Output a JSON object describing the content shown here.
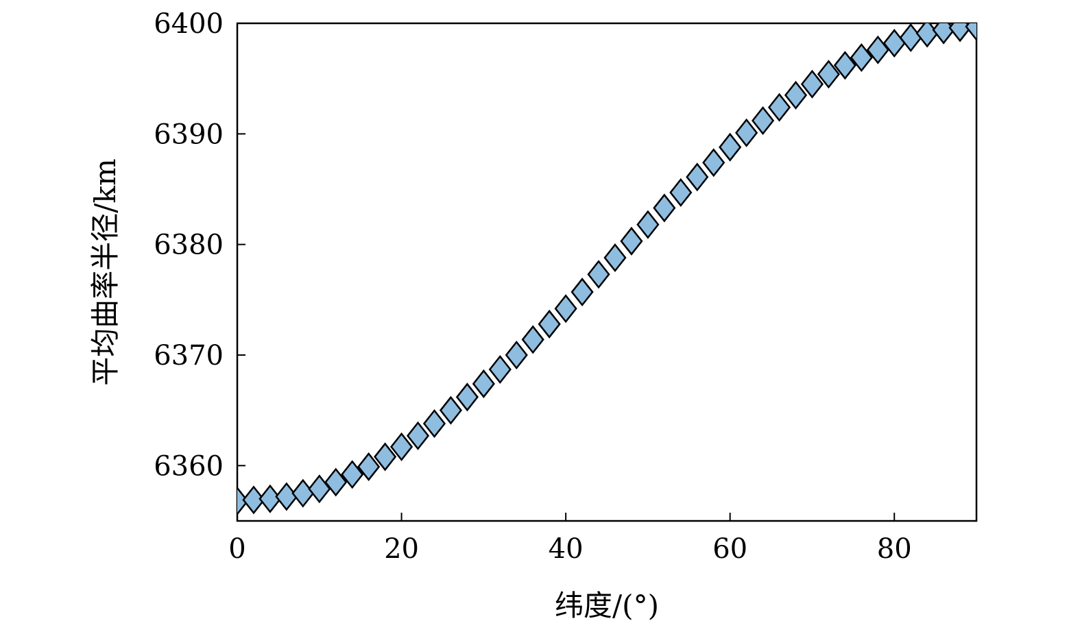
{
  "chart_data": {
    "type": "scatter",
    "title": "",
    "xlabel": "纬度/(°)",
    "ylabel": "平均曲率半径/km",
    "xlim": [
      0,
      90
    ],
    "ylim": [
      6355,
      6400
    ],
    "xticks": [
      0,
      20,
      40,
      60,
      80
    ],
    "yticks": [
      6360,
      6370,
      6380,
      6390,
      6400
    ],
    "grid": false,
    "legend": "none",
    "marker": "diamond",
    "marker_fill": "#8fbde0",
    "marker_edge": "#000000",
    "series": [
      {
        "x": [
          0,
          2,
          4,
          6,
          8,
          10,
          12,
          14,
          16,
          18,
          20,
          22,
          24,
          26,
          28,
          30,
          32,
          34,
          36,
          38,
          40,
          42,
          44,
          46,
          48,
          50,
          52,
          54,
          56,
          58,
          60,
          62,
          64,
          66,
          68,
          70,
          72,
          74,
          76,
          78,
          80,
          82,
          84,
          86,
          88,
          90
        ],
        "y": [
          6356.8,
          6356.9,
          6357.0,
          6357.2,
          6357.5,
          6357.9,
          6358.5,
          6359.2,
          6359.9,
          6360.8,
          6361.7,
          6362.7,
          6363.8,
          6365.0,
          6366.2,
          6367.4,
          6368.7,
          6370.0,
          6371.4,
          6372.8,
          6374.2,
          6375.7,
          6377.3,
          6378.8,
          6380.3,
          6381.8,
          6383.3,
          6384.7,
          6386.1,
          6387.4,
          6388.8,
          6390.1,
          6391.2,
          6392.4,
          6393.5,
          6394.5,
          6395.4,
          6396.2,
          6396.9,
          6397.6,
          6398.2,
          6398.7,
          6399.1,
          6399.4,
          6399.6,
          6399.7
        ]
      }
    ]
  }
}
